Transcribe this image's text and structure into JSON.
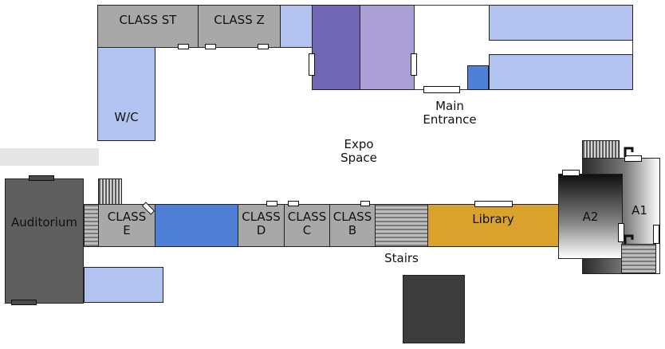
{
  "colors": {
    "classroom": "#a8a8a8",
    "wc": "#b3c3f0",
    "light_blue": "#b3c3f0",
    "purple_dark": "#7066b4",
    "purple_light": "#ab9fd6",
    "blue": "#4f7fd6",
    "library": "#d9a22c",
    "auditorium": "#5f5f5f",
    "dark_block": "#3d3d3d",
    "corridor_band": "#e6e6e6"
  },
  "rooms": {
    "class_st": "CLASS ST",
    "class_z": "CLASS Z",
    "wc": "W/C",
    "main_entrance": "Main\nEntrance",
    "expo_space": "Expo\nSpace",
    "auditorium": "Auditorium",
    "class_e": "CLASS\nE",
    "class_d": "CLASS\nD",
    "class_c": "CLASS\nC",
    "class_b": "CLASS\nB",
    "stairs": "Stairs",
    "library": "Library",
    "a2": "A2",
    "a1": "A1"
  }
}
